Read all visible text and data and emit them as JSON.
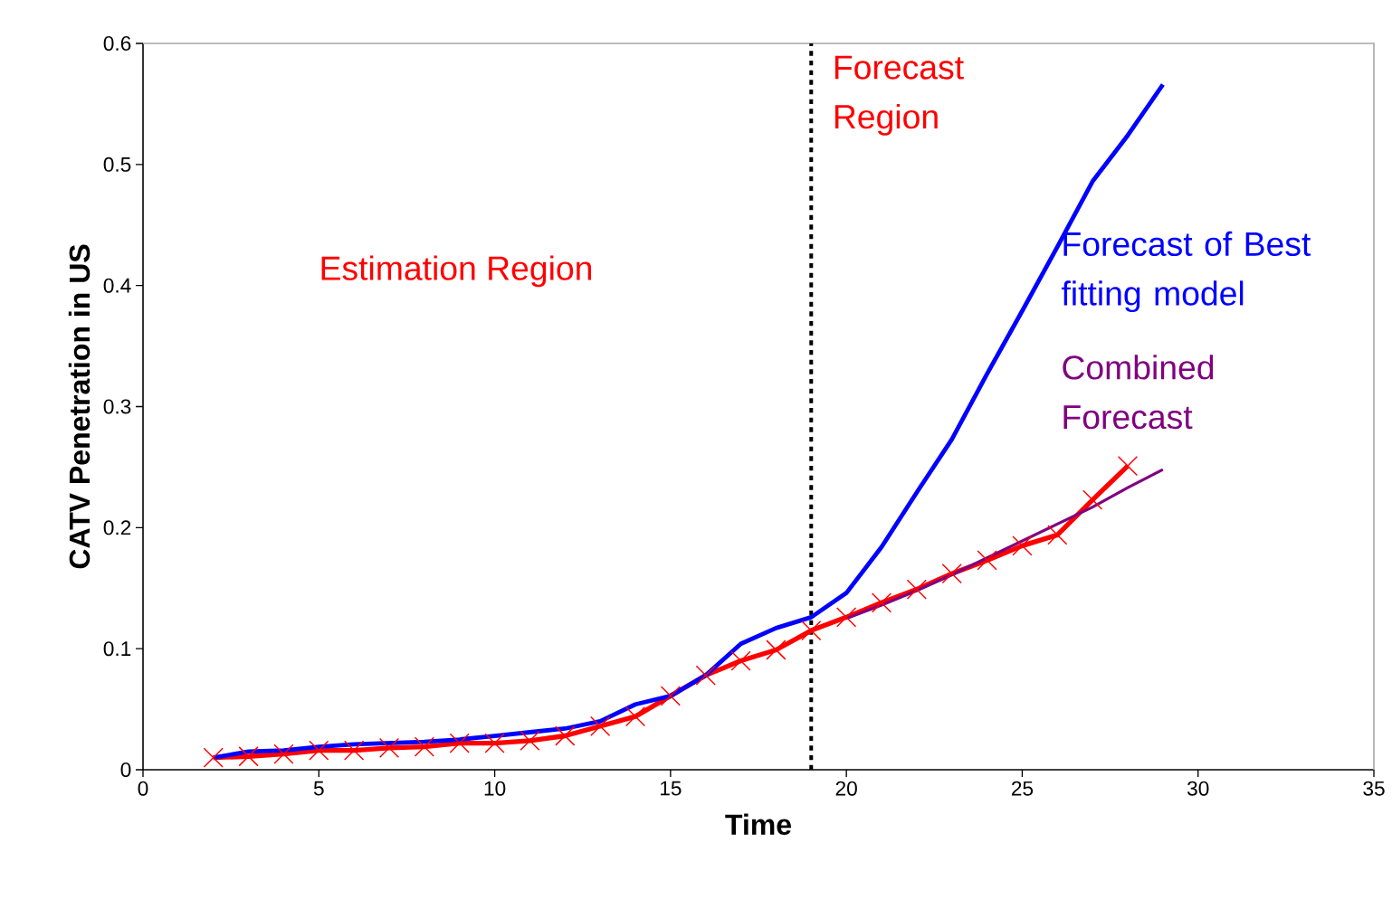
{
  "chart_data": {
    "type": "line",
    "xlabel": "Time",
    "ylabel": "CATV Penetration in US",
    "xlim": [
      0,
      35
    ],
    "ylim": [
      0,
      0.6
    ],
    "xticks": [
      0,
      5,
      10,
      15,
      20,
      25,
      30,
      35
    ],
    "yticks": [
      0,
      0.1,
      0.2,
      0.3,
      0.4,
      0.5,
      0.6
    ],
    "series": [
      {
        "color": "#ff0000",
        "marker": "cross",
        "x": [
          2,
          3,
          4,
          5,
          6,
          7,
          8,
          9,
          10,
          11,
          12,
          13,
          14,
          15,
          16,
          17,
          18,
          19,
          20,
          21,
          22,
          23,
          24,
          25,
          26,
          27,
          28
        ],
        "values": [
          0.01,
          0.011,
          0.013,
          0.016,
          0.016,
          0.018,
          0.019,
          0.022,
          0.022,
          0.024,
          0.028,
          0.036,
          0.044,
          0.061,
          0.078,
          0.09,
          0.099,
          0.115,
          0.126,
          0.138,
          0.149,
          0.162,
          0.173,
          0.185,
          0.194,
          0.223,
          0.251
        ]
      },
      {
        "name": "Forecast of Best fitting model",
        "color": "#0000ff",
        "x": [
          2,
          3,
          4,
          5,
          6,
          7,
          8,
          9,
          10,
          11,
          12,
          13,
          14,
          15,
          16,
          17,
          18,
          19,
          20,
          21,
          22,
          23,
          24,
          25,
          26,
          27,
          28,
          29
        ],
        "values": [
          0.01,
          0.015,
          0.016,
          0.019,
          0.021,
          0.022,
          0.023,
          0.025,
          0.028,
          0.031,
          0.034,
          0.04,
          0.054,
          0.061,
          0.078,
          0.104,
          0.117,
          0.126,
          0.146,
          0.184,
          0.229,
          0.273,
          0.327,
          0.379,
          0.432,
          0.486,
          0.524,
          0.566
        ]
      },
      {
        "name": "Combined Forecast",
        "color": "#800080",
        "x": [
          20,
          21,
          22,
          23,
          24,
          25,
          26,
          27,
          28,
          29
        ],
        "values": [
          0.125,
          0.136,
          0.148,
          0.161,
          0.175,
          0.189,
          0.203,
          0.217,
          0.233,
          0.248
        ]
      }
    ],
    "ref_lines": [
      {
        "axis": "x",
        "value": 19,
        "color": "#000000",
        "line_style": "dotted"
      }
    ],
    "annotations": [
      "Estimation Region",
      "Forecast Region"
    ]
  }
}
